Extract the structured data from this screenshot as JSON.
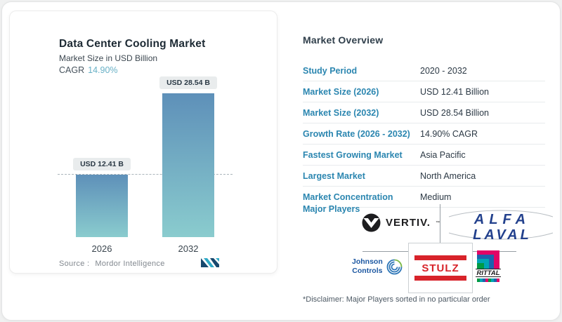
{
  "chart_panel": {
    "title": "Data Center Cooling Market",
    "subtitle": "Market Size in USD Billion",
    "cagr_label": "CAGR",
    "cagr_value": "14.90%",
    "source_prefix": "Source :",
    "source_name": "Mordor Intelligence"
  },
  "chart_data": {
    "type": "bar",
    "title": "Data Center Cooling Market",
    "ylabel": "Market Size in USD Billion",
    "categories": [
      "2026",
      "2032"
    ],
    "values": [
      12.41,
      28.54
    ],
    "bar_labels": [
      "USD 12.41 B",
      "USD 28.54 B"
    ],
    "cagr": "14.90%",
    "baseline_marker": "dashed line at 2026 value level",
    "grid": false,
    "legend": false
  },
  "overview": {
    "heading": "Market Overview",
    "rows": [
      {
        "label": "Study Period",
        "value": "2020 - 2032"
      },
      {
        "label": "Market Size (2026)",
        "value": "USD 12.41 Billion"
      },
      {
        "label": "Market Size (2032)",
        "value": "USD 28.54 Billion"
      },
      {
        "label": "Growth Rate (2026 - 2032)",
        "value": "14.90% CAGR"
      },
      {
        "label": "Fastest Growing Market",
        "value": "Asia Pacific"
      },
      {
        "label": "Largest Market",
        "value": "North America"
      },
      {
        "label": "Market Concentration",
        "value": "Medium"
      }
    ],
    "major_players_label": "Major Players",
    "players": [
      "Vertiv",
      "Alfa Laval",
      "Johnson Controls",
      "Stulz",
      "Rittal"
    ],
    "disclaimer": "*Disclaimer: Major Players sorted in no particular order"
  },
  "logos": {
    "vertiv_text": "VERTIV.",
    "vertiv_tm": "™",
    "alfa_line1": "ALFA",
    "alfa_line2": "LAVAL",
    "johnson_line1": "Johnson",
    "johnson_line2": "Controls",
    "stulz_text": "STULZ",
    "rittal_text": "RITTAL"
  },
  "colors": {
    "accent_blue": "#2b86b0",
    "cagr_color": "#68b0c6",
    "bar_top": "#5e90b9",
    "bar_bottom": "#8accce",
    "pill_bg": "#e9eced",
    "stulz_red": "#d8232a",
    "alfa_blue": "#23418d",
    "johnson_blue": "#1c57a1",
    "vertiv_black": "#1d1d1f",
    "mordor_navy": "#16486e",
    "mordor_teal": "#2fa9c6"
  }
}
